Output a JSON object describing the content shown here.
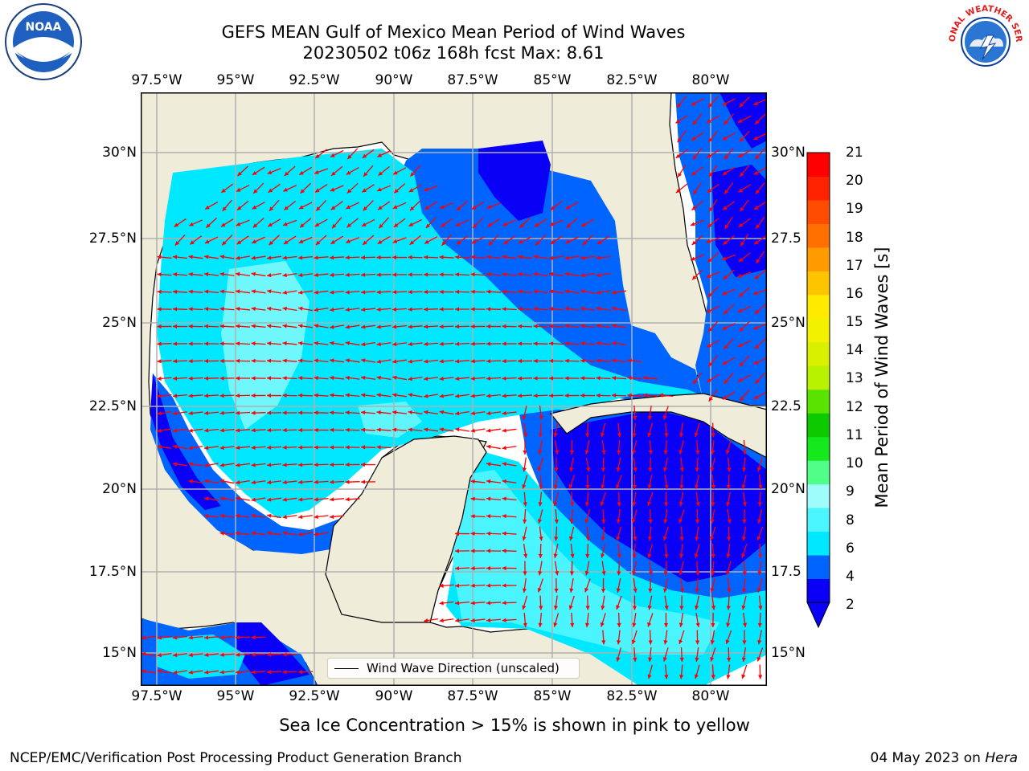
{
  "title_line1": "GEFS MEAN Gulf of Mexico Mean Period of Wind Waves",
  "title_line2": "20230502 t06z 168h fcst   Max: 8.61",
  "lon_ticks": [
    "97.5°W",
    "95°W",
    "92.5°W",
    "90°W",
    "87.5°W",
    "85°W",
    "82.5°W",
    "80°W"
  ],
  "lat_ticks": [
    "30°N",
    "27.5°N",
    "25°N",
    "22.5°N",
    "20°N",
    "17.5°N",
    "15°N"
  ],
  "lat_ticks_right": [
    "30°N",
    "27.5",
    "25°N",
    "22.5",
    "20°N",
    "17.5",
    "15°N"
  ],
  "legend_label": "Wind Wave Direction (unscaled)",
  "colorbar": {
    "label": "Mean Period of Wind Waves [s]",
    "ticks": [
      "21",
      "20",
      "19",
      "18",
      "17",
      "16",
      "15",
      "14",
      "13",
      "12",
      "11",
      "10",
      "9",
      "8",
      "6",
      "4",
      "2"
    ],
    "colors": [
      "#0a00f5",
      "#0064ff",
      "#00e8ff",
      "#4af5ff",
      "#9efdfb",
      "#4fff87",
      "#16e81e",
      "#0cc900",
      "#5be300",
      "#b8f200",
      "#d9f000",
      "#f2f200",
      "#ffea00",
      "#ffc400",
      "#ff9a00",
      "#ff7000",
      "#ff4c00",
      "#ff2200",
      "#ff0000"
    ]
  },
  "note": "Sea Ice Concentration > 15% is shown in pink to yellow",
  "footer_left": "NCEP/EMC/Verification Post Processing Product Generation Branch",
  "footer_date": "04 May 2023 on ",
  "footer_host": "Hera",
  "logos": {
    "left": "NOAA",
    "right": "NATIONAL WEATHER SERVICE"
  },
  "map_colors": {
    "land": "#efecda",
    "ocean": "#ffffff",
    "grid": "#b0b0b0",
    "arrow": "#ff0000"
  }
}
